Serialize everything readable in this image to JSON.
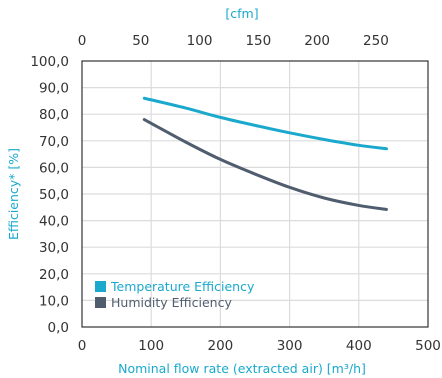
{
  "chart_data": {
    "type": "line",
    "top_axis_label": "[cfm]",
    "top_ticks": [
      "0",
      "50",
      "100",
      "150",
      "200",
      "250"
    ],
    "top_tick_values": [
      0,
      50,
      100,
      150,
      200,
      250
    ],
    "cfm_per_m3h": 0.5886,
    "xlabel": "Nominal flow rate (extracted air) [m³/h]",
    "ylabel": "Efficiency* [%]",
    "xlim": [
      0,
      500
    ],
    "ylim": [
      0,
      100
    ],
    "x_ticks": [
      "0",
      "100",
      "200",
      "300",
      "400",
      "500"
    ],
    "x_tick_values": [
      0,
      100,
      200,
      300,
      400,
      500
    ],
    "y_ticks": [
      "0,0",
      "10,0",
      "20,0",
      "30,0",
      "40,0",
      "50,0",
      "60,0",
      "70,0",
      "80,0",
      "90,0",
      "100,0"
    ],
    "y_tick_values": [
      0,
      10,
      20,
      30,
      40,
      50,
      60,
      70,
      80,
      90,
      100
    ],
    "grid": true,
    "legend_position": "bottom-left",
    "series": [
      {
        "name": "Temperature Efficiency",
        "color": "#1aa9cd",
        "x": [
          90,
          150,
          200,
          250,
          300,
          350,
          400,
          440
        ],
        "y": [
          86,
          82.3,
          78.8,
          75.8,
          73,
          70.5,
          68.3,
          67
        ]
      },
      {
        "name": "Humidity Efficiency",
        "color": "#4f5d6f",
        "x": [
          90,
          150,
          200,
          250,
          300,
          350,
          400,
          440
        ],
        "y": [
          78,
          69.5,
          63,
          57.5,
          52.5,
          48.5,
          45.7,
          44.2
        ]
      }
    ]
  }
}
